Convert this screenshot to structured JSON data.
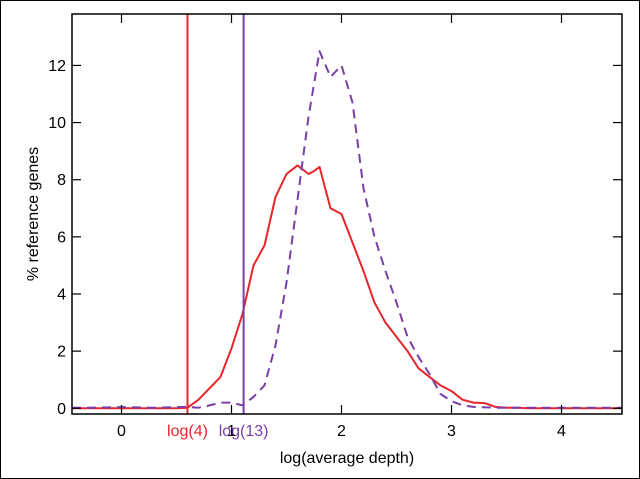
{
  "chart_data": {
    "type": "line",
    "title": "",
    "xlabel": "log(average depth)",
    "ylabel": "% reference genes",
    "xlim": [
      -0.45,
      4.55
    ],
    "ylim": [
      -0.2,
      13.8
    ],
    "xticks": [
      0,
      1,
      2,
      3,
      4
    ],
    "yticks": [
      0,
      2,
      4,
      6,
      8,
      10,
      12
    ],
    "grid": false,
    "legend": "none",
    "series": [
      {
        "color": "#e8262a",
        "dash": "solid",
        "x": [
          -0.45,
          0.5,
          0.6,
          0.7,
          0.8,
          0.9,
          1.0,
          1.1,
          1.2,
          1.3,
          1.4,
          1.5,
          1.6,
          1.7,
          1.75,
          1.8,
          1.9,
          2.0,
          2.1,
          2.2,
          2.3,
          2.4,
          2.5,
          2.6,
          2.7,
          2.8,
          2.9,
          3.0,
          3.1,
          3.2,
          3.3,
          3.4,
          3.5,
          3.6,
          3.7,
          4.55
        ],
        "y": [
          0.0,
          0.0,
          0.02,
          0.3,
          0.7,
          1.1,
          2.1,
          3.3,
          5.0,
          5.7,
          7.4,
          8.2,
          8.5,
          8.2,
          8.3,
          8.45,
          7.0,
          6.8,
          5.8,
          4.8,
          3.7,
          3.0,
          2.5,
          2.0,
          1.4,
          1.1,
          0.8,
          0.6,
          0.3,
          0.2,
          0.18,
          0.05,
          0.02,
          0.02,
          0.0,
          0.0
        ]
      },
      {
        "color": "#7a3fa6",
        "dash": "dashed",
        "x": [
          -0.45,
          -0.3,
          0.0,
          0.3,
          0.6,
          0.7,
          0.8,
          0.9,
          1.0,
          1.1,
          1.2,
          1.3,
          1.4,
          1.5,
          1.6,
          1.7,
          1.8,
          1.9,
          2.0,
          2.1,
          2.2,
          2.3,
          2.4,
          2.5,
          2.6,
          2.7,
          2.8,
          2.9,
          3.0,
          3.1,
          3.2,
          3.4,
          4.55
        ],
        "y": [
          0.02,
          0.02,
          0.04,
          0.02,
          0.05,
          0.02,
          0.1,
          0.2,
          0.2,
          0.1,
          0.4,
          0.8,
          2.2,
          4.4,
          7.3,
          10.2,
          12.5,
          11.6,
          12.0,
          10.7,
          7.7,
          6.0,
          4.8,
          3.7,
          2.5,
          1.8,
          1.2,
          0.5,
          0.25,
          0.1,
          0.05,
          0.02,
          0.02
        ]
      }
    ],
    "markers": [
      {
        "x": 0.6,
        "label": "log(4)",
        "color": "#e8262a"
      },
      {
        "x": 1.11,
        "label": "log(13)",
        "color": "#7a3fa6"
      }
    ]
  }
}
